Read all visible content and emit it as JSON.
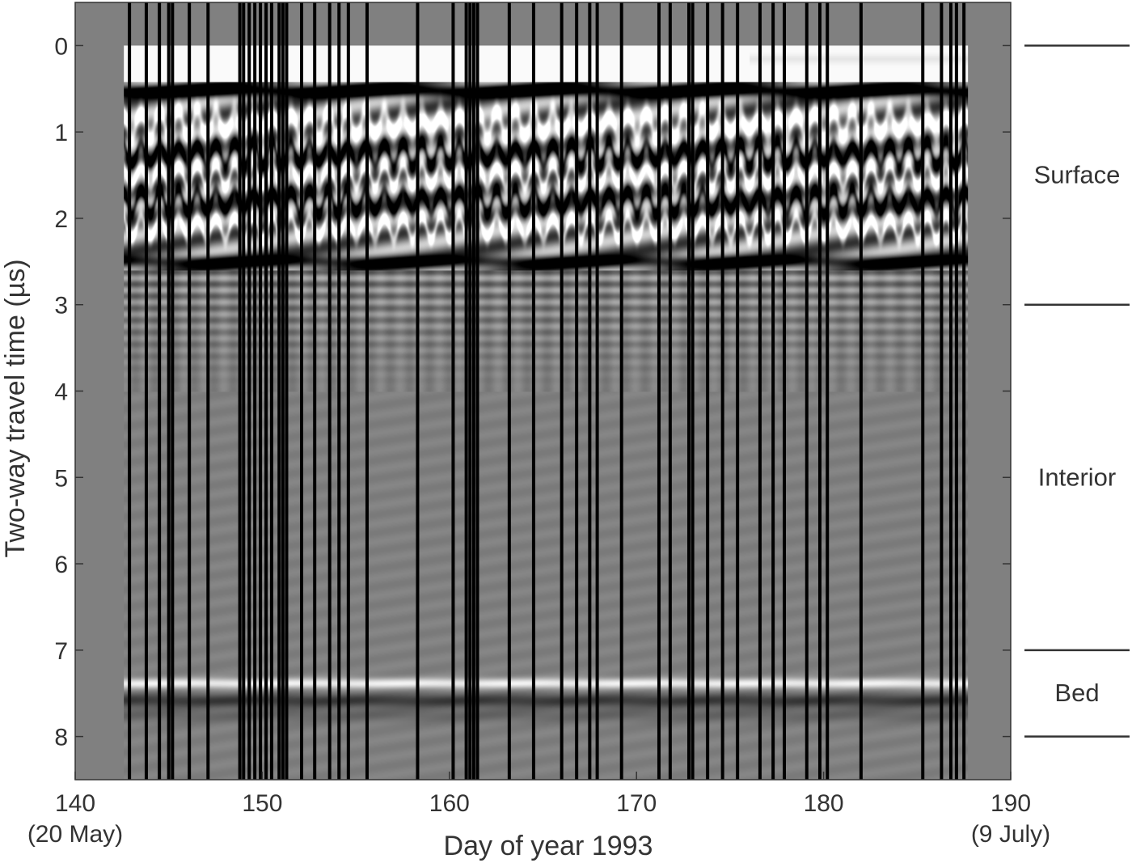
{
  "chart_data": {
    "type": "heatmap",
    "xlabel": "Day of year 1993",
    "ylabel": "Two-way travel time (µs)",
    "xlim": [
      140,
      190
    ],
    "ylim": [
      8.5,
      -0.5
    ],
    "x_ticks": [
      {
        "value": 140,
        "label": "140",
        "sublabel": "(20 May)"
      },
      {
        "value": 150,
        "label": "150",
        "sublabel": ""
      },
      {
        "value": 160,
        "label": "160",
        "sublabel": ""
      },
      {
        "value": 170,
        "label": "170",
        "sublabel": ""
      },
      {
        "value": 180,
        "label": "180",
        "sublabel": ""
      },
      {
        "value": 190,
        "label": "190",
        "sublabel": "(9 July)"
      }
    ],
    "y_ticks": [
      0,
      1,
      2,
      3,
      4,
      5,
      6,
      7,
      8
    ],
    "data_range_days": [
      142.6,
      187.7
    ],
    "colormap": [
      "#000000",
      "#808080",
      "#ffffff"
    ],
    "background_color": "#808080",
    "zones": [
      {
        "label": "Surface",
        "from": 0,
        "to": 3
      },
      {
        "label": "Interior",
        "from": 3,
        "to": 7
      },
      {
        "label": "Bed",
        "from": 7,
        "to": 8
      }
    ],
    "reflectors": [
      {
        "time": 0.5,
        "polarity": "dark"
      },
      {
        "time": 1.25,
        "polarity": "dark"
      },
      {
        "time": 1.8,
        "polarity": "dark"
      },
      {
        "time": 2.5,
        "polarity": "dark"
      },
      {
        "time": 7.4,
        "polarity": "bright"
      },
      {
        "time": 7.6,
        "polarity": "dark"
      }
    ],
    "gap_days": [
      142.9,
      143.8,
      144.5,
      145.0,
      145.2,
      146.1,
      147.1,
      148.8,
      149.0,
      149.3,
      149.6,
      149.9,
      150.2,
      150.5,
      150.9,
      151.1,
      151.3,
      152.1,
      152.8,
      153.6,
      154.1,
      154.6,
      155.6,
      158.3,
      160.2,
      160.9,
      161.1,
      161.3,
      161.5,
      163.2,
      164.5,
      166.0,
      166.8,
      167.5,
      167.9,
      169.2,
      171.2,
      171.8,
      172.8,
      173.0,
      173.8,
      174.6,
      175.4,
      176.6,
      177.3,
      177.9,
      179.1,
      179.8,
      180.2,
      182.0,
      185.3,
      186.3,
      186.8,
      187.1,
      187.5
    ]
  }
}
